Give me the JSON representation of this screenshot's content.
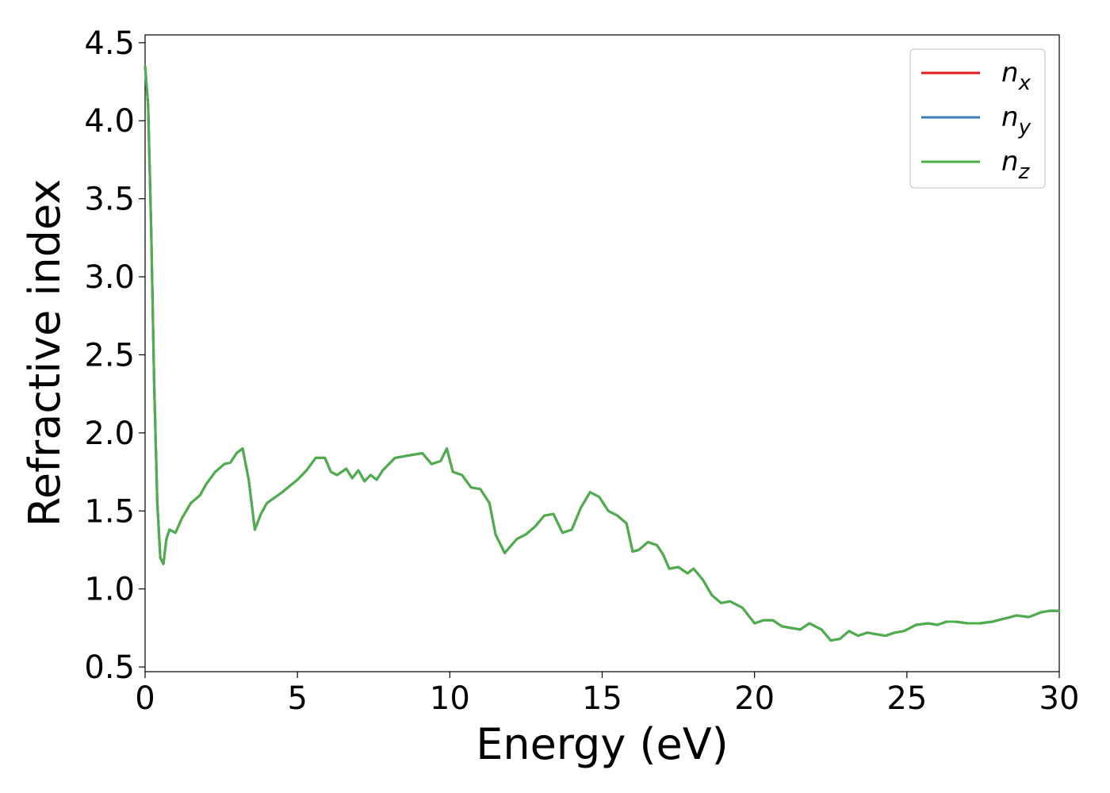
{
  "chart_data": {
    "type": "line",
    "title": "",
    "xlabel": "Energy (eV)",
    "ylabel": "Refractive index",
    "xlim": [
      0,
      30
    ],
    "ylim": [
      0.47,
      4.55
    ],
    "xticks": [
      0,
      5,
      10,
      15,
      20,
      25,
      30
    ],
    "xtick_labels": [
      "0",
      "5",
      "10",
      "15",
      "20",
      "25",
      "30"
    ],
    "yticks": [
      0.5,
      1.0,
      1.5,
      2.0,
      2.5,
      3.0,
      3.5,
      4.0,
      4.5
    ],
    "ytick_labels": [
      "0.5",
      "1.0",
      "1.5",
      "2.0",
      "2.5",
      "3.0",
      "3.5",
      "4.0",
      "4.5"
    ],
    "grid": false,
    "legend_position": "top-right",
    "x": [
      0,
      0.1,
      0.2,
      0.3,
      0.4,
      0.5,
      0.6,
      0.7,
      0.8,
      1.0,
      1.2,
      1.5,
      1.8,
      2.0,
      2.3,
      2.6,
      2.8,
      3.0,
      3.2,
      3.4,
      3.6,
      3.8,
      4.0,
      4.5,
      5.0,
      5.3,
      5.6,
      5.9,
      6.1,
      6.3,
      6.6,
      6.8,
      7.0,
      7.2,
      7.4,
      7.6,
      7.8,
      8.2,
      8.5,
      8.8,
      9.1,
      9.4,
      9.7,
      9.9,
      10.1,
      10.4,
      10.7,
      11.0,
      11.3,
      11.5,
      11.8,
      12.2,
      12.5,
      12.8,
      13.1,
      13.4,
      13.7,
      14.0,
      14.3,
      14.6,
      14.9,
      15.2,
      15.5,
      15.8,
      16.0,
      16.2,
      16.5,
      16.8,
      17.0,
      17.2,
      17.5,
      17.8,
      18.0,
      18.3,
      18.6,
      18.9,
      19.2,
      19.6,
      20.0,
      20.3,
      20.6,
      20.9,
      21.2,
      21.5,
      21.8,
      22.2,
      22.5,
      22.8,
      23.1,
      23.4,
      23.7,
      24.0,
      24.3,
      24.6,
      24.9,
      25.3,
      25.7,
      26.0,
      26.3,
      26.6,
      27.0,
      27.4,
      27.8,
      28.2,
      28.6,
      29.0,
      29.4,
      29.7,
      30.0
    ],
    "series": [
      {
        "name": "n_x",
        "color": "#e41a1c",
        "y": [
          4.35,
          4.1,
          3.3,
          2.3,
          1.55,
          1.2,
          1.16,
          1.32,
          1.38,
          1.36,
          1.45,
          1.55,
          1.6,
          1.67,
          1.75,
          1.8,
          1.81,
          1.87,
          1.9,
          1.7,
          1.38,
          1.48,
          1.55,
          1.62,
          1.7,
          1.76,
          1.84,
          1.84,
          1.75,
          1.73,
          1.77,
          1.71,
          1.76,
          1.69,
          1.73,
          1.7,
          1.76,
          1.84,
          1.85,
          1.86,
          1.87,
          1.8,
          1.82,
          1.9,
          1.75,
          1.73,
          1.65,
          1.64,
          1.55,
          1.35,
          1.23,
          1.32,
          1.35,
          1.4,
          1.47,
          1.48,
          1.36,
          1.38,
          1.52,
          1.62,
          1.59,
          1.5,
          1.47,
          1.42,
          1.24,
          1.25,
          1.3,
          1.28,
          1.22,
          1.13,
          1.14,
          1.1,
          1.13,
          1.06,
          0.96,
          0.91,
          0.92,
          0.88,
          0.78,
          0.8,
          0.8,
          0.76,
          0.75,
          0.74,
          0.78,
          0.74,
          0.67,
          0.68,
          0.73,
          0.7,
          0.72,
          0.71,
          0.7,
          0.72,
          0.73,
          0.77,
          0.78,
          0.77,
          0.79,
          0.79,
          0.78,
          0.78,
          0.79,
          0.81,
          0.83,
          0.82,
          0.85,
          0.86,
          0.86
        ]
      },
      {
        "name": "n_y",
        "color": "#377eb8",
        "y": [
          4.35,
          4.1,
          3.3,
          2.3,
          1.55,
          1.2,
          1.16,
          1.32,
          1.38,
          1.36,
          1.45,
          1.55,
          1.6,
          1.67,
          1.75,
          1.8,
          1.81,
          1.87,
          1.9,
          1.7,
          1.38,
          1.48,
          1.55,
          1.62,
          1.7,
          1.76,
          1.84,
          1.84,
          1.75,
          1.73,
          1.77,
          1.71,
          1.76,
          1.69,
          1.73,
          1.7,
          1.76,
          1.84,
          1.85,
          1.86,
          1.87,
          1.8,
          1.82,
          1.9,
          1.75,
          1.73,
          1.65,
          1.64,
          1.55,
          1.35,
          1.23,
          1.32,
          1.35,
          1.4,
          1.47,
          1.48,
          1.36,
          1.38,
          1.52,
          1.62,
          1.59,
          1.5,
          1.47,
          1.42,
          1.24,
          1.25,
          1.3,
          1.28,
          1.22,
          1.13,
          1.14,
          1.1,
          1.13,
          1.06,
          0.96,
          0.91,
          0.92,
          0.88,
          0.78,
          0.8,
          0.8,
          0.76,
          0.75,
          0.74,
          0.78,
          0.74,
          0.67,
          0.68,
          0.73,
          0.7,
          0.72,
          0.71,
          0.7,
          0.72,
          0.73,
          0.77,
          0.78,
          0.77,
          0.79,
          0.79,
          0.78,
          0.78,
          0.79,
          0.81,
          0.83,
          0.82,
          0.85,
          0.86,
          0.86
        ]
      },
      {
        "name": "n_z",
        "color": "#4daf4a",
        "y": [
          4.35,
          4.1,
          3.3,
          2.3,
          1.55,
          1.2,
          1.16,
          1.32,
          1.38,
          1.36,
          1.45,
          1.55,
          1.6,
          1.67,
          1.75,
          1.8,
          1.81,
          1.87,
          1.9,
          1.7,
          1.38,
          1.48,
          1.55,
          1.62,
          1.7,
          1.76,
          1.84,
          1.84,
          1.75,
          1.73,
          1.77,
          1.71,
          1.76,
          1.69,
          1.73,
          1.7,
          1.76,
          1.84,
          1.85,
          1.86,
          1.87,
          1.8,
          1.82,
          1.9,
          1.75,
          1.73,
          1.65,
          1.64,
          1.55,
          1.35,
          1.23,
          1.32,
          1.35,
          1.4,
          1.47,
          1.48,
          1.36,
          1.38,
          1.52,
          1.62,
          1.59,
          1.5,
          1.47,
          1.42,
          1.24,
          1.25,
          1.3,
          1.28,
          1.22,
          1.13,
          1.14,
          1.1,
          1.13,
          1.06,
          0.96,
          0.91,
          0.92,
          0.88,
          0.78,
          0.8,
          0.8,
          0.76,
          0.75,
          0.74,
          0.78,
          0.74,
          0.67,
          0.68,
          0.73,
          0.7,
          0.72,
          0.71,
          0.7,
          0.72,
          0.73,
          0.77,
          0.78,
          0.77,
          0.79,
          0.79,
          0.78,
          0.78,
          0.79,
          0.81,
          0.83,
          0.82,
          0.85,
          0.86,
          0.86
        ]
      }
    ],
    "legend": [
      {
        "base": "n",
        "sub": "x",
        "color": "#e41a1c"
      },
      {
        "base": "n",
        "sub": "y",
        "color": "#377eb8"
      },
      {
        "base": "n",
        "sub": "z",
        "color": "#4daf4a"
      }
    ]
  }
}
